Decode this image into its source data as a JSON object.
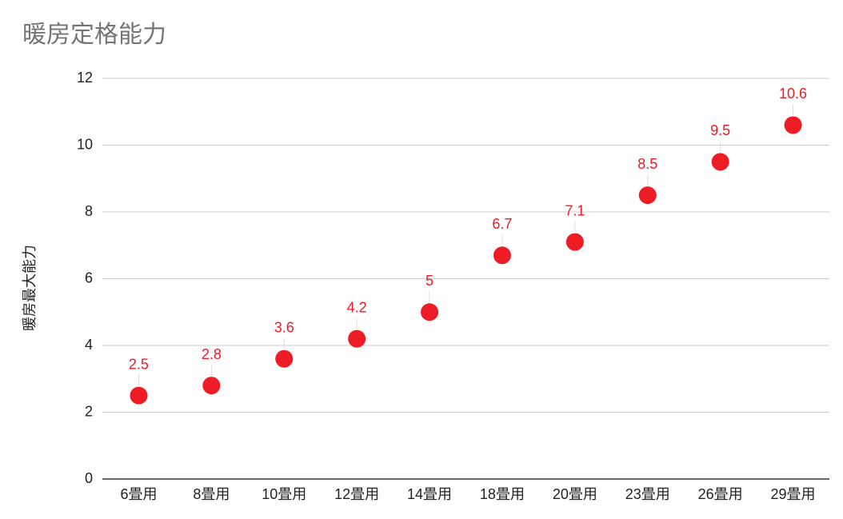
{
  "chart_data": {
    "type": "scatter",
    "title": "暖房定格能力",
    "y_label": "暖房最大能力",
    "categories": [
      "6畳用",
      "8畳用",
      "10畳用",
      "12畳用",
      "14畳用",
      "18畳用",
      "20畳用",
      "23畳用",
      "26畳用",
      "29畳用"
    ],
    "values": [
      2.5,
      2.8,
      3.6,
      4.2,
      5,
      6.7,
      7.1,
      8.5,
      9.5,
      10.6
    ],
    "color": "#ee1c25",
    "ylim": [
      0,
      12
    ],
    "yticks": [
      0,
      2,
      4,
      6,
      8,
      10,
      12
    ],
    "grid": true
  }
}
